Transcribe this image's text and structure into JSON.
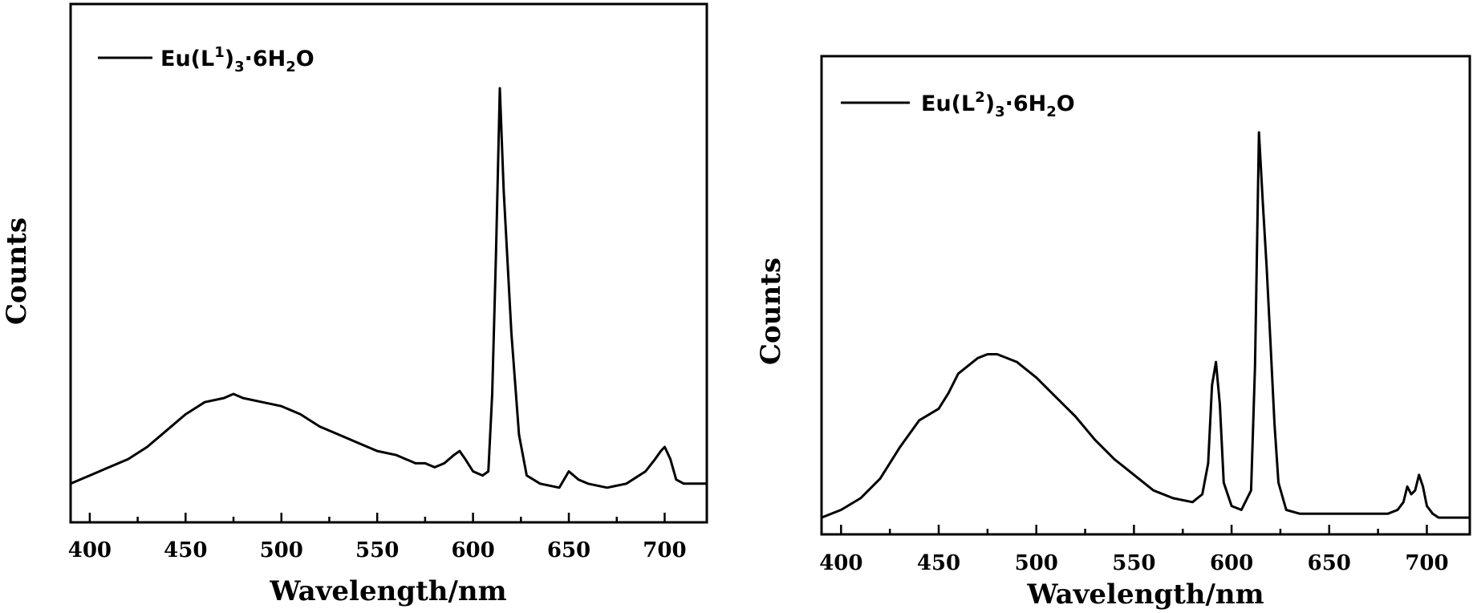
{
  "chart_data": [
    {
      "type": "line",
      "xlabel": "Wavelength/nm",
      "ylabel": "Counts",
      "xlim": [
        390,
        722
      ],
      "ylim": [
        0,
        1
      ],
      "xticks": [
        400,
        450,
        500,
        550,
        600,
        650,
        700
      ],
      "legend": {
        "placement": "top-left",
        "parts": {
          "a": "Eu(L",
          "b": "1",
          "c": ")",
          "d": "3",
          "e": "·6H",
          "f": "2",
          "g": "O"
        }
      },
      "series": [
        {
          "name": "Eu(L1)3·6H2O",
          "x": [
            390,
            400,
            410,
            420,
            430,
            440,
            450,
            460,
            470,
            475,
            480,
            490,
            500,
            510,
            520,
            530,
            540,
            550,
            560,
            570,
            575,
            580,
            585,
            590,
            593,
            596,
            600,
            605,
            608,
            610,
            612,
            614,
            616,
            620,
            624,
            628,
            635,
            645,
            650,
            655,
            660,
            670,
            680,
            690,
            695,
            698,
            700,
            703,
            706,
            710,
            715,
            722
          ],
          "y": [
            0.03,
            0.05,
            0.07,
            0.09,
            0.12,
            0.16,
            0.2,
            0.23,
            0.24,
            0.25,
            0.24,
            0.23,
            0.22,
            0.2,
            0.17,
            0.15,
            0.13,
            0.11,
            0.1,
            0.08,
            0.08,
            0.07,
            0.08,
            0.1,
            0.11,
            0.09,
            0.06,
            0.05,
            0.06,
            0.25,
            0.6,
            1.0,
            0.75,
            0.4,
            0.15,
            0.05,
            0.03,
            0.02,
            0.06,
            0.04,
            0.03,
            0.02,
            0.03,
            0.06,
            0.09,
            0.11,
            0.12,
            0.09,
            0.04,
            0.03,
            0.03,
            0.03
          ]
        }
      ]
    },
    {
      "type": "line",
      "xlabel": "Wavelength/nm",
      "ylabel": "Counts",
      "xlim": [
        390,
        722
      ],
      "ylim": [
        0,
        1
      ],
      "xticks": [
        400,
        450,
        500,
        550,
        600,
        650,
        700
      ],
      "legend": {
        "placement": "top-left",
        "parts": {
          "a": "Eu(L",
          "b": "2",
          "c": ")",
          "d": "3",
          "e": "·6H",
          "f": "2",
          "g": "O"
        }
      },
      "series": [
        {
          "name": "Eu(L2)3·6H2O",
          "x": [
            390,
            400,
            410,
            420,
            430,
            440,
            450,
            455,
            460,
            470,
            475,
            480,
            490,
            500,
            510,
            520,
            530,
            540,
            550,
            560,
            570,
            580,
            585,
            588,
            590,
            592,
            594,
            596,
            600,
            605,
            610,
            612,
            614,
            616,
            618,
            620,
            622,
            624,
            628,
            635,
            645,
            655,
            665,
            675,
            680,
            685,
            688,
            690,
            692,
            694,
            696,
            698,
            700,
            703,
            706,
            710,
            715,
            722
          ],
          "y": [
            0.01,
            0.03,
            0.06,
            0.11,
            0.19,
            0.26,
            0.29,
            0.33,
            0.38,
            0.42,
            0.43,
            0.43,
            0.41,
            0.37,
            0.32,
            0.27,
            0.21,
            0.16,
            0.12,
            0.08,
            0.06,
            0.05,
            0.07,
            0.15,
            0.35,
            0.41,
            0.3,
            0.1,
            0.04,
            0.03,
            0.08,
            0.4,
            1.0,
            0.82,
            0.65,
            0.45,
            0.25,
            0.1,
            0.03,
            0.02,
            0.02,
            0.02,
            0.02,
            0.02,
            0.02,
            0.03,
            0.05,
            0.09,
            0.07,
            0.08,
            0.12,
            0.09,
            0.04,
            0.02,
            0.01,
            0.01,
            0.01,
            0.01
          ]
        }
      ]
    }
  ]
}
